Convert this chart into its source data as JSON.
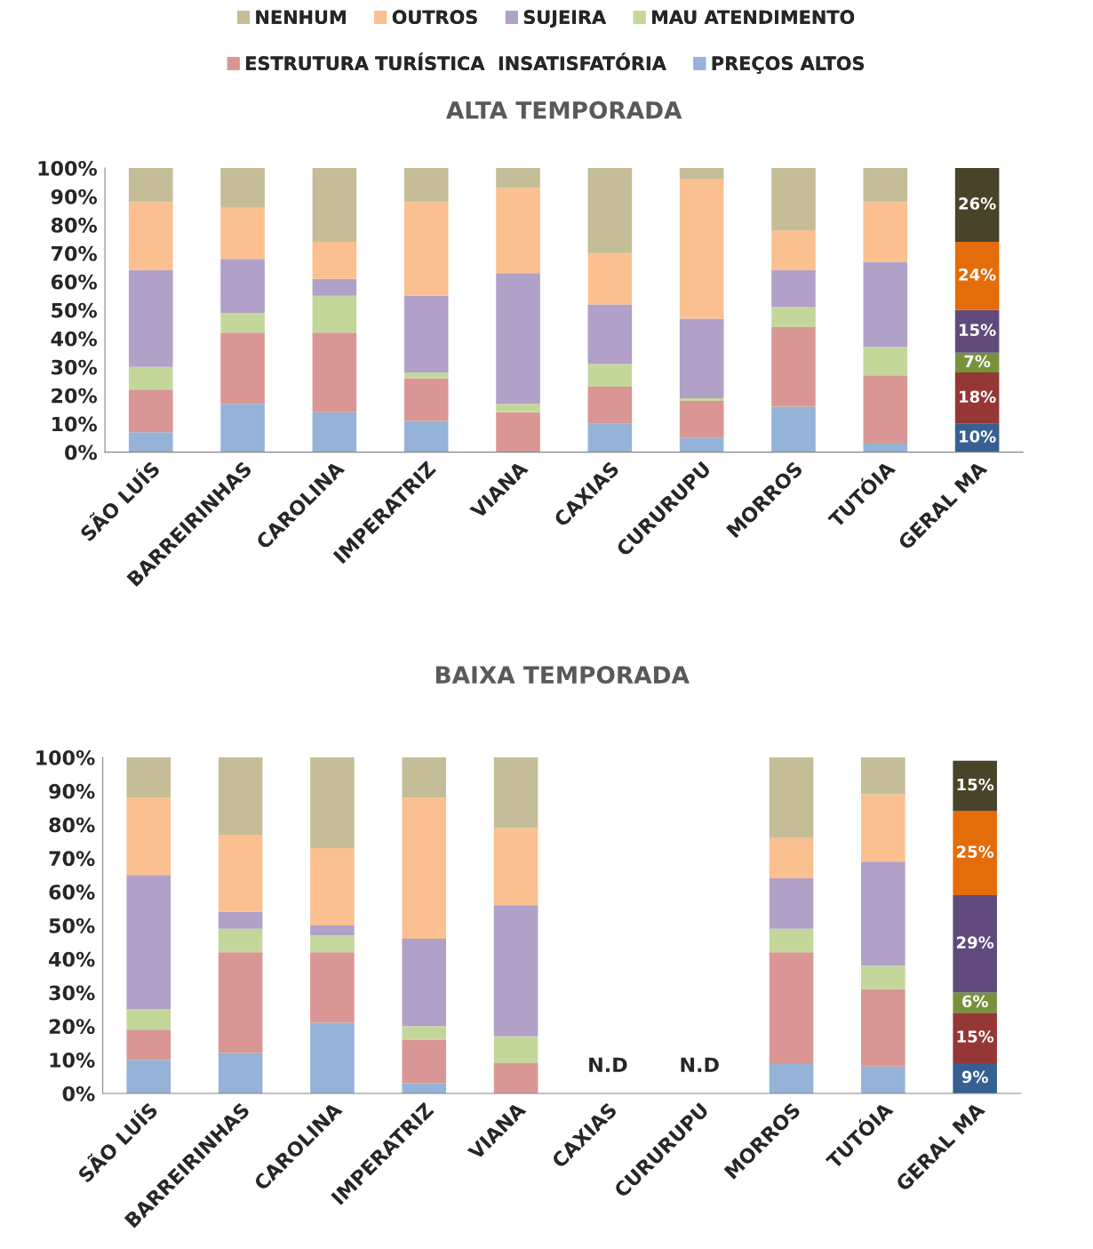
{
  "chart_data": [
    {
      "type": "bar",
      "title": "ALTA TEMPORADA",
      "stacked": true,
      "legend": "top",
      "grid": false,
      "categories": [
        "SÃO LUÍS",
        "BARREIRINHAS",
        "CAROLINA",
        "IMPERATRIZ",
        "VIANA",
        "CAXIAS",
        "CURURUPU",
        "MORROS",
        "TUTÓIA",
        "GERAL MA"
      ],
      "ylim": [
        0,
        100
      ],
      "yticks": [
        {
          "value": 0,
          "label": "0%"
        },
        {
          "value": 10,
          "label": "10%"
        },
        {
          "value": 20,
          "label": "20%"
        },
        {
          "value": 30,
          "label": "30%"
        },
        {
          "value": 40,
          "label": "40%"
        },
        {
          "value": 50,
          "label": "50%"
        },
        {
          "value": 60,
          "label": "60%"
        },
        {
          "value": 70,
          "label": "70%"
        },
        {
          "value": 80,
          "label": "80%"
        },
        {
          "value": 90,
          "label": "90%"
        },
        {
          "value": 100,
          "label": "100%"
        }
      ],
      "series": [
        {
          "name": "PREÇOS ALTOS",
          "color": "#95b3d7",
          "colors": [
            "#95b3d7",
            "#95b3d7",
            "#95b3d7",
            "#95b3d7",
            "#95b3d7",
            "#95b3d7",
            "#95b3d7",
            "#95b3d7",
            "#95b3d7",
            "#366092"
          ],
          "values": [
            7,
            17,
            14,
            11,
            0,
            10,
            5,
            16,
            3,
            10
          ],
          "value_labels": [
            null,
            null,
            null,
            null,
            null,
            null,
            null,
            null,
            null,
            "10%"
          ]
        },
        {
          "name": "ESTRUTURA TURÍSTICA  INSATISFATÓRIA",
          "color": "#da9694",
          "colors": [
            "#da9694",
            "#da9694",
            "#da9694",
            "#da9694",
            "#da9694",
            "#da9694",
            "#da9694",
            "#da9694",
            "#da9694",
            "#953735"
          ],
          "values": [
            15,
            25,
            28,
            15,
            14,
            13,
            13,
            28,
            24,
            18
          ],
          "value_labels": [
            null,
            null,
            null,
            null,
            null,
            null,
            null,
            null,
            null,
            "18%"
          ]
        },
        {
          "name": "MAU ATENDIMENTO",
          "color": "#c4d79b",
          "colors": [
            "#c4d79b",
            "#c4d79b",
            "#c4d79b",
            "#c4d79b",
            "#c4d79b",
            "#c4d79b",
            "#c4d79b",
            "#c4d79b",
            "#c4d79b",
            "#76923c"
          ],
          "values": [
            8,
            7,
            13,
            2,
            3,
            8,
            1,
            7,
            10,
            7
          ],
          "value_labels": [
            null,
            null,
            null,
            null,
            null,
            null,
            null,
            null,
            null,
            "7%"
          ]
        },
        {
          "name": "SUJEIRA",
          "color": "#b1a0c7",
          "colors": [
            "#b1a0c7",
            "#b1a0c7",
            "#b1a0c7",
            "#b1a0c7",
            "#b1a0c7",
            "#b1a0c7",
            "#b1a0c7",
            "#b1a0c7",
            "#b1a0c7",
            "#604a7b"
          ],
          "values": [
            34,
            19,
            6,
            27,
            46,
            21,
            28,
            13,
            30,
            15
          ],
          "value_labels": [
            null,
            null,
            null,
            null,
            null,
            null,
            null,
            null,
            null,
            "15%"
          ]
        },
        {
          "name": "OUTROS",
          "color": "#fac090",
          "colors": [
            "#fac090",
            "#fac090",
            "#fac090",
            "#fac090",
            "#fac090",
            "#fac090",
            "#fac090",
            "#fac090",
            "#fac090",
            "#e46c0a"
          ],
          "values": [
            24,
            18,
            13,
            33,
            30,
            18,
            49,
            14,
            21,
            24
          ],
          "value_labels": [
            null,
            null,
            null,
            null,
            null,
            null,
            null,
            null,
            null,
            "24%"
          ]
        },
        {
          "name": "NENHUM",
          "color": "#c4bd97",
          "colors": [
            "#c4bd97",
            "#c4bd97",
            "#c4bd97",
            "#c4bd97",
            "#c4bd97",
            "#c4bd97",
            "#c4bd97",
            "#c4bd97",
            "#c4bd97",
            "#494429"
          ],
          "values": [
            12,
            14,
            26,
            12,
            7,
            30,
            4,
            22,
            12,
            26
          ],
          "value_labels": [
            null,
            null,
            null,
            null,
            null,
            null,
            null,
            null,
            null,
            "26%"
          ]
        }
      ]
    },
    {
      "type": "bar",
      "title": "BAIXA TEMPORADA",
      "stacked": true,
      "grid": false,
      "categories": [
        "SÃO LUÍS",
        "BARREIRINHAS",
        "CAROLINA",
        "IMPERATRIZ",
        "VIANA",
        "CAXIAS",
        "CURURUPU",
        "MORROS",
        "TUTÓIA",
        "GERAL MA"
      ],
      "ylim": [
        0,
        100
      ],
      "yticks": [
        {
          "value": 0,
          "label": "0%"
        },
        {
          "value": 10,
          "label": "10%"
        },
        {
          "value": 20,
          "label": "20%"
        },
        {
          "value": 30,
          "label": "30%"
        },
        {
          "value": 40,
          "label": "40%"
        },
        {
          "value": 50,
          "label": "50%"
        },
        {
          "value": 60,
          "label": "60%"
        },
        {
          "value": 70,
          "label": "70%"
        },
        {
          "value": 80,
          "label": "80%"
        },
        {
          "value": 90,
          "label": "90%"
        },
        {
          "value": 100,
          "label": "100%"
        }
      ],
      "annotations": [
        "N.D",
        "N.D"
      ],
      "series": [
        {
          "color": "#95b3d7",
          "colors": [
            "#95b3d7",
            "#95b3d7",
            "#95b3d7",
            "#95b3d7",
            "#95b3d7",
            "#95b3d7",
            "#95b3d7",
            "#95b3d7",
            "#95b3d7",
            "#366092"
          ],
          "values": [
            10,
            12,
            21,
            3,
            0,
            null,
            null,
            9,
            8,
            9
          ],
          "value_labels": [
            null,
            null,
            null,
            null,
            null,
            null,
            null,
            null,
            null,
            "9%"
          ]
        },
        {
          "color": "#da9694",
          "colors": [
            "#da9694",
            "#da9694",
            "#da9694",
            "#da9694",
            "#da9694",
            "#da9694",
            "#da9694",
            "#da9694",
            "#da9694",
            "#953735"
          ],
          "values": [
            9,
            30,
            21,
            13,
            9,
            null,
            null,
            33,
            23,
            15
          ],
          "value_labels": [
            null,
            null,
            null,
            null,
            null,
            null,
            null,
            null,
            null,
            "15%"
          ]
        },
        {
          "color": "#c4d79b",
          "colors": [
            "#c4d79b",
            "#c4d79b",
            "#c4d79b",
            "#c4d79b",
            "#c4d79b",
            "#c4d79b",
            "#c4d79b",
            "#c4d79b",
            "#c4d79b",
            "#76923c"
          ],
          "values": [
            6,
            7,
            5,
            4,
            8,
            null,
            null,
            7,
            7,
            6
          ],
          "value_labels": [
            null,
            null,
            null,
            null,
            null,
            null,
            null,
            null,
            null,
            "6%"
          ]
        },
        {
          "color": "#b1a0c7",
          "colors": [
            "#b1a0c7",
            "#b1a0c7",
            "#b1a0c7",
            "#b1a0c7",
            "#b1a0c7",
            "#b1a0c7",
            "#b1a0c7",
            "#b1a0c7",
            "#b1a0c7",
            "#604a7b"
          ],
          "values": [
            40,
            5,
            3,
            26,
            39,
            null,
            null,
            15,
            31,
            29
          ],
          "value_labels": [
            null,
            null,
            null,
            null,
            null,
            null,
            null,
            null,
            null,
            "29%"
          ]
        },
        {
          "color": "#fac090",
          "colors": [
            "#fac090",
            "#fac090",
            "#fac090",
            "#fac090",
            "#fac090",
            "#fac090",
            "#fac090",
            "#fac090",
            "#fac090",
            "#e46c0a"
          ],
          "values": [
            23,
            23,
            23,
            42,
            23,
            null,
            null,
            12,
            20,
            25
          ],
          "value_labels": [
            null,
            null,
            null,
            null,
            null,
            null,
            null,
            null,
            null,
            "25%"
          ]
        },
        {
          "color": "#c4bd97",
          "colors": [
            "#c4bd97",
            "#c4bd97",
            "#c4bd97",
            "#c4bd97",
            "#c4bd97",
            "#c4bd97",
            "#c4bd97",
            "#c4bd97",
            "#c4bd97",
            "#494429"
          ],
          "values": [
            12,
            23,
            27,
            12,
            21,
            null,
            null,
            24,
            11,
            15
          ],
          "value_labels": [
            null,
            null,
            null,
            null,
            null,
            null,
            null,
            null,
            null,
            "15%"
          ]
        }
      ]
    }
  ]
}
